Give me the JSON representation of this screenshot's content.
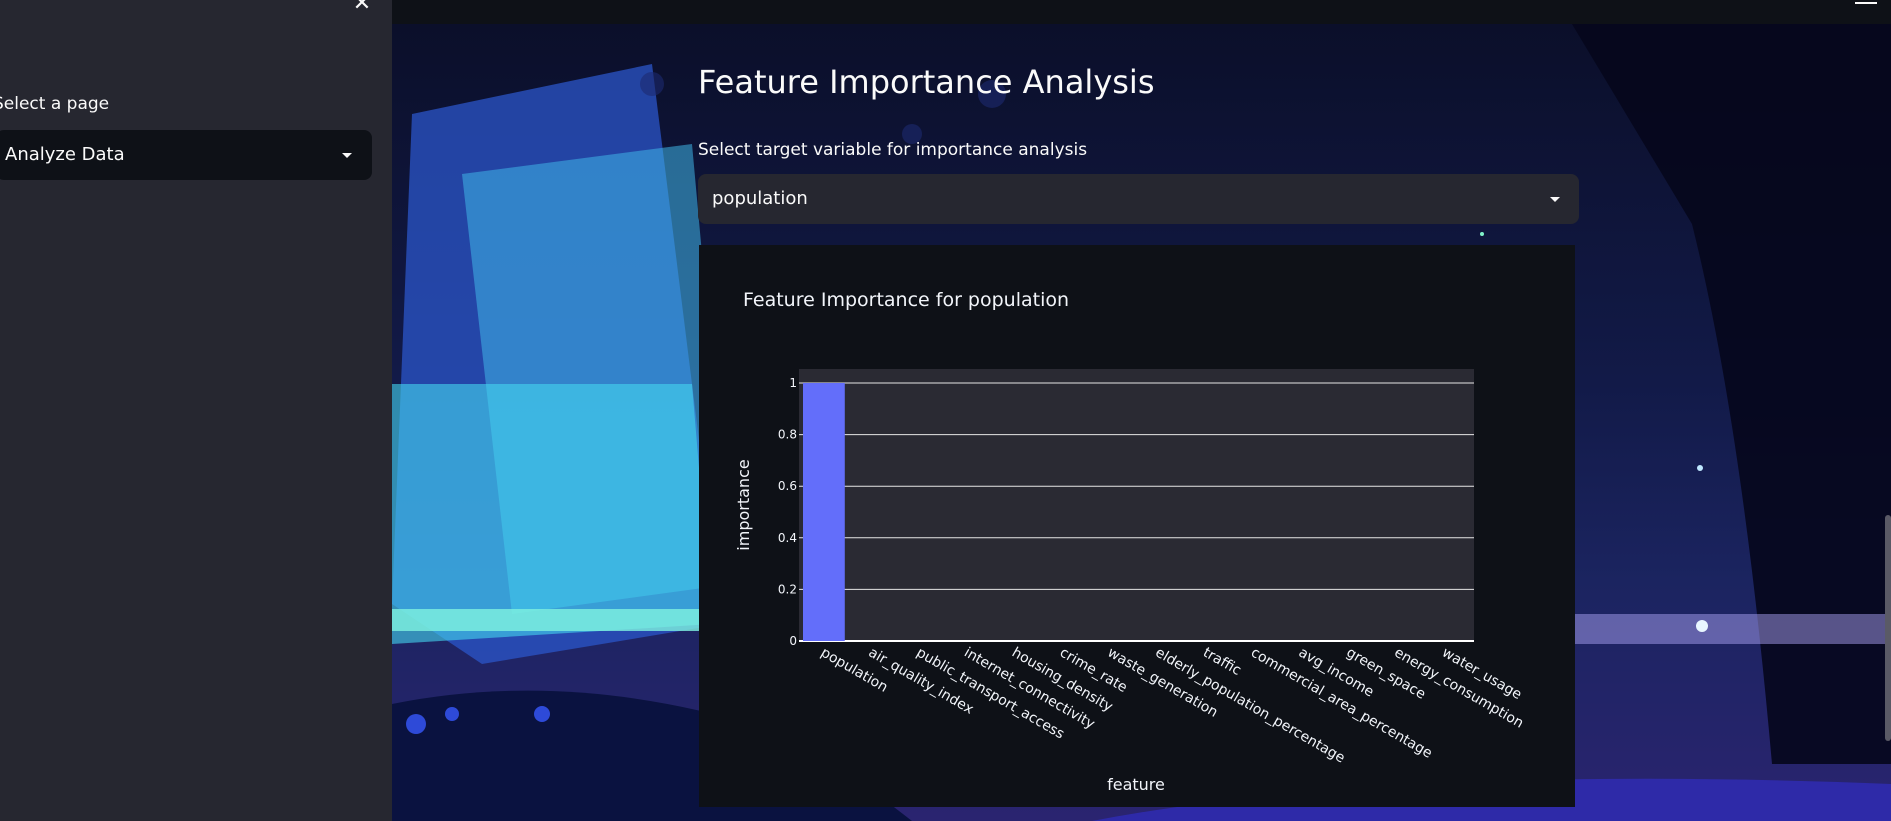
{
  "sidebar": {
    "page_select_label": "Select a page",
    "page_select_value": "Analyze Data"
  },
  "main": {
    "title": "Feature Importance Analysis",
    "target_select_label": "Select target variable for importance analysis",
    "target_select_value": "population"
  },
  "icons": {
    "close": "close-icon",
    "menu": "hamburger-menu-icon",
    "dropdown": "caret-down-icon"
  },
  "colors": {
    "bar": "#636efa",
    "plot_bg": "#2a2a33",
    "page_bg": "#0e1117",
    "sidebar_bg": "#262730"
  },
  "chart_data": {
    "type": "bar",
    "title": "Feature Importance for population",
    "xlabel": "feature",
    "ylabel": "importance",
    "ylim": [
      0,
      1
    ],
    "yticks": [
      "0",
      "0.2",
      "0.4",
      "0.6",
      "0.8",
      "1"
    ],
    "grid": true,
    "categories": [
      "population",
      "air_quality_index",
      "public_transport_access",
      "internet_connectivity",
      "housing_density",
      "crime_rate",
      "waste_generation",
      "elderly_population_percentage",
      "traffic",
      "commercial_area_percentage",
      "avg_income",
      "green_space",
      "energy_consumption",
      "water_usage"
    ],
    "values": [
      1,
      0,
      0,
      0,
      0,
      0,
      0,
      0,
      0,
      0,
      0,
      0,
      0,
      0
    ]
  }
}
